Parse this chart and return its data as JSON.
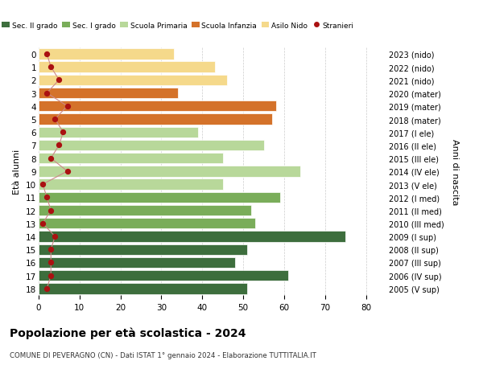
{
  "ages": [
    0,
    1,
    2,
    3,
    4,
    5,
    6,
    7,
    8,
    9,
    10,
    11,
    12,
    13,
    14,
    15,
    16,
    17,
    18
  ],
  "bar_values": [
    33,
    43,
    46,
    34,
    58,
    57,
    39,
    55,
    45,
    64,
    45,
    59,
    52,
    53,
    75,
    51,
    48,
    61,
    51
  ],
  "stranieri": [
    2,
    3,
    5,
    2,
    7,
    4,
    6,
    5,
    3,
    7,
    1,
    2,
    3,
    1,
    4,
    3,
    3,
    3,
    2
  ],
  "right_labels": [
    "2023 (nido)",
    "2022 (nido)",
    "2021 (nido)",
    "2020 (mater)",
    "2019 (mater)",
    "2018 (mater)",
    "2017 (I ele)",
    "2016 (II ele)",
    "2015 (III ele)",
    "2014 (IV ele)",
    "2013 (V ele)",
    "2012 (I med)",
    "2011 (II med)",
    "2010 (III med)",
    "2009 (I sup)",
    "2008 (II sup)",
    "2007 (III sup)",
    "2006 (IV sup)",
    "2005 (V sup)"
  ],
  "bar_colors": [
    "#f5d98b",
    "#f5d98b",
    "#f5d98b",
    "#d4722a",
    "#d4722a",
    "#d4722a",
    "#b8d89a",
    "#b8d89a",
    "#b8d89a",
    "#b8d89a",
    "#b8d89a",
    "#7aad5a",
    "#7aad5a",
    "#7aad5a",
    "#3d6e3d",
    "#3d6e3d",
    "#3d6e3d",
    "#3d6e3d",
    "#3d6e3d"
  ],
  "stranieri_dot_color": "#aa1111",
  "stranieri_line_color": "#cc8888",
  "title": "Popolazione per età scolastica - 2024",
  "subtitle": "COMUNE DI PEVERAGNO (CN) - Dati ISTAT 1° gennaio 2024 - Elaborazione TUTTITALIA.IT",
  "ylabel_left": "Età alunni",
  "ylabel_right": "Anni di nascita",
  "xlim": [
    0,
    85
  ],
  "xticks": [
    0,
    10,
    20,
    30,
    40,
    50,
    60,
    70,
    80
  ],
  "background_color": "#ffffff",
  "legend_labels": [
    "Sec. II grado",
    "Sec. I grado",
    "Scuola Primaria",
    "Scuola Infanzia",
    "Asilo Nido",
    "Stranieri"
  ],
  "legend_colors": [
    "#3d6e3d",
    "#7aad5a",
    "#b8d89a",
    "#d4722a",
    "#f5d98b",
    "#aa1111"
  ]
}
